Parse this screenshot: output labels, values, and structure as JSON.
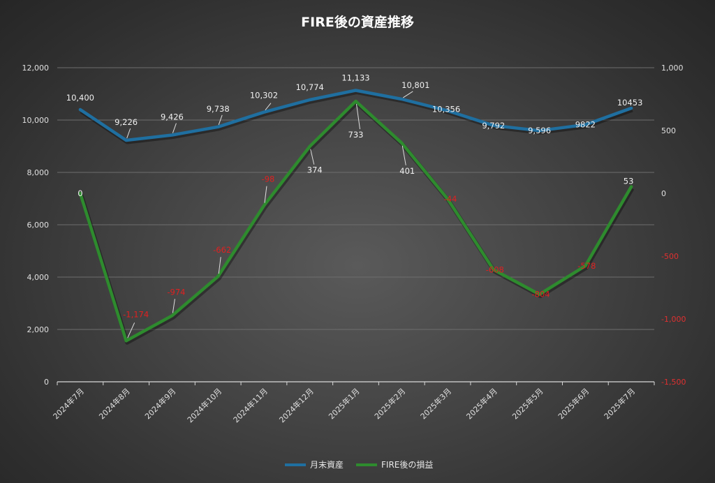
{
  "chart_data": {
    "type": "line",
    "title": "FIRE後の資産推移",
    "categories": [
      "2024年7月",
      "2024年8月",
      "2024年9月",
      "2024年10月",
      "2024年11月",
      "2024年12月",
      "2025年1月",
      "2025年2月",
      "2025年3月",
      "2025年4月",
      "2025年5月",
      "2025年6月",
      "2025年7月"
    ],
    "series": [
      {
        "name": "月末資産",
        "axis": "left",
        "color": "#1f6fa0",
        "values": [
          10400,
          9226,
          9426,
          9738,
          10302,
          10774,
          11133,
          10801,
          10356,
          9792,
          9596,
          9822,
          10453
        ],
        "labels": [
          "10,400",
          "9,226",
          "9,426",
          "9,738",
          "10,302",
          "10,774",
          "11,133",
          "10,801",
          "10,356",
          "9,792",
          "9,596",
          "9822",
          "10453"
        ]
      },
      {
        "name": "FIRE後の損益",
        "axis": "right",
        "color": "#2e8b2e",
        "values": [
          0,
          -1174,
          -974,
          -662,
          -98,
          374,
          733,
          401,
          -44,
          -608,
          -804,
          -578,
          53
        ],
        "labels": [
          "0",
          "-1,174",
          "-974",
          "-662",
          "-98",
          "374",
          "733",
          "401",
          "-44",
          "-608",
          "-804",
          "-578",
          "53"
        ]
      }
    ],
    "y_left": {
      "min": 0,
      "max": 12000,
      "ticks": [
        "0",
        "2,000",
        "4,000",
        "6,000",
        "8,000",
        "10,000",
        "12,000"
      ]
    },
    "y_right": {
      "min": -1500,
      "max": 1000,
      "ticks": [
        "-1,500",
        "-1,000",
        "-500",
        "0",
        "500",
        "1,000"
      ]
    },
    "grid": true,
    "legend_position": "bottom"
  }
}
